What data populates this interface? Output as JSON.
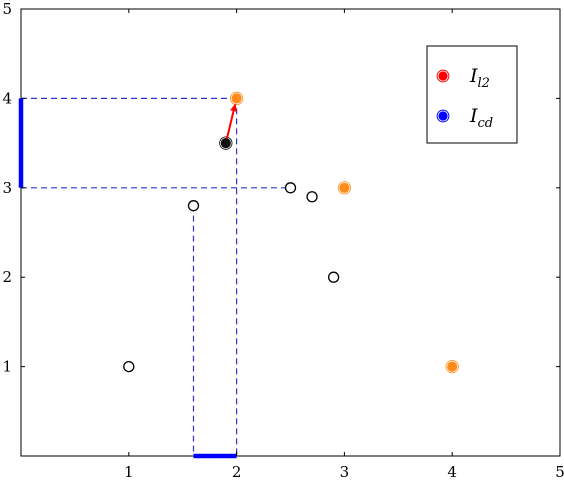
{
  "chart_data": {
    "type": "scatter",
    "title": "",
    "xlabel": "",
    "ylabel": "",
    "xlim": [
      0,
      5
    ],
    "ylim": [
      0,
      5
    ],
    "x_ticks": [
      1,
      2,
      3,
      4,
      5
    ],
    "y_ticks": [
      1,
      2,
      3,
      4,
      5
    ],
    "x_tick_labels": [
      "1",
      "2",
      "3",
      "4",
      "5"
    ],
    "y_tick_labels": [
      "1",
      "2",
      "3",
      "4",
      "5"
    ],
    "grid": false,
    "legend_position": "top-right",
    "legend": [
      {
        "symbol": "I",
        "subscript": "l2",
        "color": "#ff0000"
      },
      {
        "symbol": "I",
        "subscript": "cd",
        "color": "#0000ff"
      }
    ],
    "open_points": [
      {
        "x": 1,
        "y": 1
      },
      {
        "x": 1.6,
        "y": 2.8
      },
      {
        "x": 2.5,
        "y": 3
      },
      {
        "x": 2.7,
        "y": 2.9
      },
      {
        "x": 2.9,
        "y": 2
      }
    ],
    "orange_points": [
      {
        "x": 2,
        "y": 4
      },
      {
        "x": 3,
        "y": 3
      },
      {
        "x": 4,
        "y": 1
      }
    ],
    "query_point": {
      "x": 1.9,
      "y": 3.5
    },
    "arrow": {
      "from": [
        1.9,
        3.5
      ],
      "to": [
        2,
        4
      ],
      "color": "#ff0000"
    },
    "dashed_lines": [
      {
        "from": [
          0,
          4
        ],
        "to": [
          2,
          4
        ]
      },
      {
        "from": [
          2,
          4
        ],
        "to": [
          2,
          0
        ]
      },
      {
        "from": [
          0,
          3
        ],
        "to": [
          2.5,
          3
        ]
      },
      {
        "from": [
          1.6,
          2.8
        ],
        "to": [
          1.6,
          0
        ]
      }
    ],
    "dash_color": "#3333cc",
    "highlight_segments": [
      {
        "from": [
          0,
          3
        ],
        "to": [
          0,
          4
        ]
      },
      {
        "from": [
          1.6,
          0
        ],
        "to": [
          2,
          0
        ]
      }
    ],
    "highlight_color": "#0000ff",
    "orange_color": "#ff8c1a",
    "legend_marker_colors": [
      "#ff0000",
      "#0000ff"
    ]
  }
}
